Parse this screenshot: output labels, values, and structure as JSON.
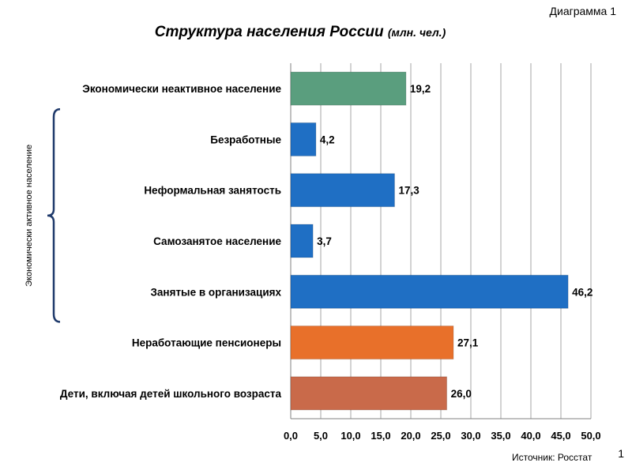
{
  "header": {
    "diagram_label": "Диаграмма 1",
    "title": "Структура населения России",
    "title_unit": "(млн. чел.)"
  },
  "chart_data": {
    "type": "bar",
    "orientation": "horizontal",
    "categories": [
      "Экономически неактивное население",
      "Безработные",
      "Неформальная занятость",
      "Самозанятое население",
      "Занятые в организациях",
      "Неработающие пенсионеры",
      "Дети, включая детей школьного возраста"
    ],
    "values": [
      19.2,
      4.2,
      17.3,
      3.7,
      46.2,
      27.1,
      26.0
    ],
    "value_labels": [
      "19,2",
      "4,2",
      "17,3",
      "3,7",
      "46,2",
      "27,1",
      "26,0"
    ],
    "colors": [
      "#5a9e7e",
      "#1f6fc4",
      "#1f6fc4",
      "#1f6fc4",
      "#1f6fc4",
      "#e8702a",
      "#c96a4a"
    ],
    "xlim": [
      0,
      50
    ],
    "ticks": [
      0,
      5,
      10,
      15,
      20,
      25,
      30,
      35,
      40,
      45,
      50
    ],
    "tick_labels": [
      "0,0",
      "5,0",
      "10,0",
      "15,0",
      "20,0",
      "25,0",
      "30,0",
      "35,0",
      "40,0",
      "45,0",
      "50,0"
    ],
    "grid": "vertical",
    "bracket_label": "Экономически  активное  население",
    "bracket_spans_categories": [
      "Безработные",
      "Занятые в организациях"
    ]
  },
  "footer": {
    "source": "Источник: Росстат",
    "page_number": "1"
  }
}
